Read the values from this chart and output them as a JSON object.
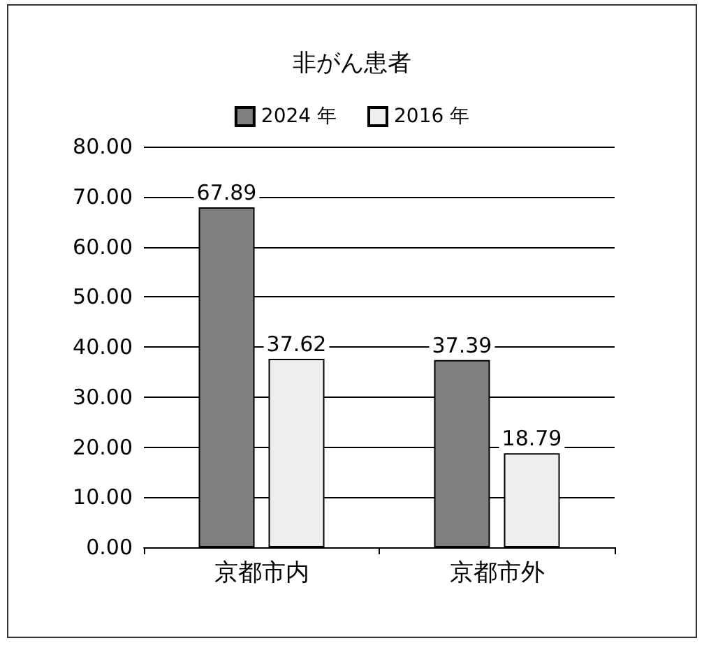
{
  "chart_data": {
    "type": "bar",
    "title": "非がん患者",
    "categories": [
      "京都市内",
      "京都市外"
    ],
    "series": [
      {
        "name": "2024 年",
        "color": "#808080",
        "values": [
          67.89,
          37.39
        ]
      },
      {
        "name": "2016 年",
        "color": "#eeeeee",
        "values": [
          37.62,
          18.79
        ]
      }
    ],
    "ylim": [
      0,
      80
    ],
    "yticks": [
      {
        "value": 0,
        "label": "0.00"
      },
      {
        "value": 10,
        "label": "10.00"
      },
      {
        "value": 20,
        "label": "20.00"
      },
      {
        "value": 30,
        "label": "30.00"
      },
      {
        "value": 40,
        "label": "40.00"
      },
      {
        "value": 50,
        "label": "50.00"
      },
      {
        "value": 60,
        "label": "60.00"
      },
      {
        "value": 70,
        "label": "70.00"
      },
      {
        "value": 80,
        "label": "80.00"
      }
    ],
    "grid": "y",
    "legend": "top",
    "data_labels": true
  }
}
